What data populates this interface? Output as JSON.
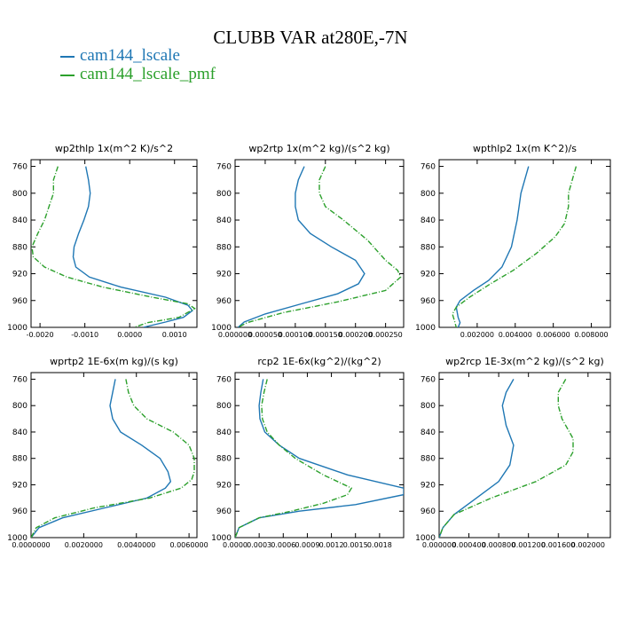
{
  "title": "CLUBB VAR at280E,-7N",
  "colors": {
    "cam144_lscale": "#1f77b4",
    "cam144_lscale_pmf": "#2ca02c",
    "axis": "#000000"
  },
  "legend": [
    {
      "name": "cam144_lscale",
      "color": "#1f77b4",
      "style": "solid"
    },
    {
      "name": "cam144_lscale_pmf",
      "color": "#2ca02c",
      "style": "dashdot"
    }
  ],
  "chart_data": [
    {
      "type": "line",
      "title": "wp2thlp  1x(m^2 K)/s^2",
      "xlim": [
        -0.0022,
        0.0015
      ],
      "ylim": [
        1000,
        750
      ],
      "xticks": [
        -0.002,
        -0.001,
        0.0,
        0.001
      ],
      "xtick_labels": [
        "-0.0020",
        "-0.0010",
        "0.0000",
        "0.0010"
      ],
      "yticks": [
        760,
        800,
        840,
        880,
        920,
        960,
        1000
      ],
      "series": [
        {
          "name": "cam144_lscale",
          "points": [
            [
              -0.00098,
              760
            ],
            [
              -0.00092,
              780
            ],
            [
              -0.00088,
              800
            ],
            [
              -0.00092,
              820
            ],
            [
              -0.00102,
              840
            ],
            [
              -0.00114,
              860
            ],
            [
              -0.00124,
              880
            ],
            [
              -0.00126,
              895
            ],
            [
              -0.0012,
              910
            ],
            [
              -0.0009,
              925
            ],
            [
              -0.0002,
              940
            ],
            [
              0.0008,
              955
            ],
            [
              0.0013,
              967
            ],
            [
              0.0014,
              975
            ],
            [
              0.0012,
              985
            ],
            [
              0.0008,
              992
            ],
            [
              0.0003,
              1000
            ]
          ]
        },
        {
          "name": "cam144_lscale_pmf",
          "points": [
            [
              -0.0016,
              760
            ],
            [
              -0.0017,
              780
            ],
            [
              -0.0017,
              800
            ],
            [
              -0.0018,
              820
            ],
            [
              -0.0019,
              840
            ],
            [
              -0.00205,
              860
            ],
            [
              -0.00218,
              880
            ],
            [
              -0.00215,
              895
            ],
            [
              -0.0019,
              910
            ],
            [
              -0.0014,
              925
            ],
            [
              -0.0006,
              940
            ],
            [
              0.0005,
              955
            ],
            [
              0.0013,
              965
            ],
            [
              0.00145,
              972
            ],
            [
              0.0011,
              985
            ],
            [
              0.0004,
              993
            ],
            [
              0.0001,
              1000
            ]
          ]
        }
      ]
    },
    {
      "type": "line",
      "title": "wp2rtp  1x(m^2 kg)/(s^2 kg)",
      "xlim": [
        0.0,
        0.00028
      ],
      "ylim": [
        1000,
        750
      ],
      "xticks": [
        0.0,
        5e-05,
        0.0001,
        0.00015,
        0.0002,
        0.00025
      ],
      "xtick_labels": [
        "0.000000",
        "0.000050",
        "0.000100",
        "0.000150",
        "0.000200",
        "0.000250"
      ],
      "yticks": [
        760,
        800,
        840,
        880,
        920,
        960,
        1000
      ],
      "series": [
        {
          "name": "cam144_lscale",
          "points": [
            [
              0.000115,
              760
            ],
            [
              0.000105,
              780
            ],
            [
              0.0001,
              800
            ],
            [
              0.0001,
              820
            ],
            [
              0.000105,
              840
            ],
            [
              0.000125,
              860
            ],
            [
              0.00016,
              880
            ],
            [
              0.0002,
              900
            ],
            [
              0.000215,
              920
            ],
            [
              0.000205,
              935
            ],
            [
              0.00017,
              950
            ],
            [
              0.00011,
              965
            ],
            [
              5e-05,
              980
            ],
            [
              1.5e-05,
              992
            ],
            [
              5e-06,
              1000
            ]
          ]
        },
        {
          "name": "cam144_lscale_pmf",
          "points": [
            [
              0.00015,
              760
            ],
            [
              0.00014,
              780
            ],
            [
              0.00014,
              800
            ],
            [
              0.00015,
              820
            ],
            [
              0.00018,
              840
            ],
            [
              0.00022,
              870
            ],
            [
              0.00025,
              900
            ],
            [
              0.00027,
              915
            ],
            [
              0.000275,
              925
            ],
            [
              0.00025,
              945
            ],
            [
              0.00017,
              962
            ],
            [
              8e-05,
              978
            ],
            [
              2e-05,
              993
            ],
            [
              5e-06,
              1000
            ]
          ]
        }
      ]
    },
    {
      "type": "line",
      "title": "wpthlp2  1x(m K^2)/s",
      "xlim": [
        0.0,
        0.009
      ],
      "ylim": [
        1000,
        750
      ],
      "xticks": [
        0.002,
        0.004,
        0.006,
        0.008
      ],
      "xtick_labels": [
        "0.002000",
        "0.004000",
        "0.006000",
        "0.008000"
      ],
      "yticks": [
        760,
        800,
        840,
        880,
        920,
        960,
        1000
      ],
      "series": [
        {
          "name": "cam144_lscale",
          "points": [
            [
              0.0047,
              760
            ],
            [
              0.0045,
              780
            ],
            [
              0.0043,
              800
            ],
            [
              0.0042,
              820
            ],
            [
              0.0041,
              840
            ],
            [
              0.0038,
              880
            ],
            [
              0.0033,
              910
            ],
            [
              0.0026,
              930
            ],
            [
              0.0018,
              945
            ],
            [
              0.0011,
              960
            ],
            [
              0.0009,
              970
            ],
            [
              0.001,
              985
            ],
            [
              0.0011,
              993
            ],
            [
              0.001,
              1000
            ]
          ]
        },
        {
          "name": "cam144_lscale_pmf",
          "points": [
            [
              0.0072,
              760
            ],
            [
              0.007,
              780
            ],
            [
              0.0068,
              800
            ],
            [
              0.0068,
              820
            ],
            [
              0.0066,
              845
            ],
            [
              0.0061,
              865
            ],
            [
              0.0051,
              890
            ],
            [
              0.0039,
              915
            ],
            [
              0.0027,
              935
            ],
            [
              0.0016,
              955
            ],
            [
              0.0009,
              970
            ],
            [
              0.0007,
              980
            ],
            [
              0.0008,
              990
            ],
            [
              0.0009,
              1000
            ]
          ]
        }
      ]
    },
    {
      "type": "line",
      "title": "wprtp2  1E-6x(m kg)/(s kg)",
      "xlim": [
        0.0,
        0.0063
      ],
      "ylim": [
        1000,
        750
      ],
      "xticks": [
        0.0,
        0.002,
        0.004,
        0.006
      ],
      "xtick_labels": [
        "0.0000000",
        "0.0020000",
        "0.0040000",
        "0.0060000"
      ],
      "yticks": [
        760,
        800,
        840,
        880,
        920,
        960,
        1000
      ],
      "series": [
        {
          "name": "cam144_lscale",
          "points": [
            [
              0.0032,
              760
            ],
            [
              0.0031,
              780
            ],
            [
              0.003,
              800
            ],
            [
              0.0031,
              820
            ],
            [
              0.0034,
              840
            ],
            [
              0.0042,
              860
            ],
            [
              0.0049,
              880
            ],
            [
              0.0052,
              900
            ],
            [
              0.0053,
              915
            ],
            [
              0.0051,
              925
            ],
            [
              0.0044,
              940
            ],
            [
              0.0028,
              955
            ],
            [
              0.0012,
              970
            ],
            [
              0.0003,
              985
            ],
            [
              0.0,
              1000
            ]
          ]
        },
        {
          "name": "cam144_lscale_pmf",
          "points": [
            [
              0.0036,
              760
            ],
            [
              0.0037,
              780
            ],
            [
              0.0039,
              800
            ],
            [
              0.0044,
              820
            ],
            [
              0.0054,
              840
            ],
            [
              0.006,
              860
            ],
            [
              0.0062,
              880
            ],
            [
              0.0062,
              900
            ],
            [
              0.0061,
              912
            ],
            [
              0.0057,
              925
            ],
            [
              0.0045,
              940
            ],
            [
              0.0024,
              955
            ],
            [
              0.0009,
              970
            ],
            [
              0.0002,
              985
            ],
            [
              0.0,
              1000
            ]
          ]
        }
      ]
    },
    {
      "type": "line",
      "title": "rcp2  1E-6x(kg^2)/(kg^2)",
      "xlim": [
        0.0,
        0.0021
      ],
      "ylim": [
        1000,
        750
      ],
      "xticks": [
        0.0,
        0.0003,
        0.0006,
        0.0009,
        0.0012,
        0.0015,
        0.0018
      ],
      "xtick_labels": [
        "0.0000",
        "0.0003",
        "0.0006",
        "0.0009",
        "0.0012",
        "0.0015",
        "0.0018"
      ],
      "yticks": [
        760,
        800,
        840,
        880,
        920,
        960,
        1000
      ],
      "series": [
        {
          "name": "cam144_lscale",
          "points": [
            [
              0.00035,
              760
            ],
            [
              0.00032,
              780
            ],
            [
              0.0003,
              800
            ],
            [
              0.00031,
              820
            ],
            [
              0.00037,
              840
            ],
            [
              0.00055,
              860
            ],
            [
              0.0008,
              880
            ],
            [
              0.0014,
              905
            ],
            [
              0.0021,
              925
            ],
            [
              0.0021,
              935
            ],
            [
              0.0015,
              950
            ],
            [
              0.0008,
              960
            ],
            [
              0.0003,
              970
            ],
            [
              5e-05,
              985
            ],
            [
              0.0,
              1000
            ]
          ]
        },
        {
          "name": "cam144_lscale_pmf",
          "points": [
            [
              0.0004,
              760
            ],
            [
              0.00036,
              780
            ],
            [
              0.00033,
              800
            ],
            [
              0.00034,
              820
            ],
            [
              0.0004,
              840
            ],
            [
              0.00055,
              860
            ],
            [
              0.00075,
              880
            ],
            [
              0.0011,
              905
            ],
            [
              0.00145,
              925
            ],
            [
              0.0014,
              935
            ],
            [
              0.0011,
              948
            ],
            [
              0.0007,
              960
            ],
            [
              0.0003,
              970
            ],
            [
              5e-05,
              985
            ],
            [
              0.0,
              1000
            ]
          ]
        }
      ]
    },
    {
      "type": "line",
      "title": "wp2rcp  1E-3x(m^2 kg)/(s^2 kg)",
      "xlim": [
        0.0,
        0.0023
      ],
      "ylim": [
        1000,
        750
      ],
      "xticks": [
        0.0,
        0.0004,
        0.0008,
        0.0012,
        0.0016,
        0.002
      ],
      "xtick_labels": [
        "0.000000",
        "0.000400",
        "0.000800",
        "0.001200",
        "0.001600",
        "0.002000"
      ],
      "yticks": [
        760,
        800,
        840,
        880,
        920,
        960,
        1000
      ],
      "series": [
        {
          "name": "cam144_lscale",
          "points": [
            [
              0.001,
              760
            ],
            [
              0.0009,
              780
            ],
            [
              0.00085,
              800
            ],
            [
              0.0009,
              830
            ],
            [
              0.001,
              860
            ],
            [
              0.00095,
              890
            ],
            [
              0.0008,
              915
            ],
            [
              0.0005,
              940
            ],
            [
              0.0002,
              965
            ],
            [
              5e-05,
              985
            ],
            [
              0.0,
              1000
            ]
          ]
        },
        {
          "name": "cam144_lscale_pmf",
          "points": [
            [
              0.0017,
              760
            ],
            [
              0.0016,
              780
            ],
            [
              0.0016,
              800
            ],
            [
              0.00165,
              820
            ],
            [
              0.0018,
              850
            ],
            [
              0.0018,
              870
            ],
            [
              0.0017,
              890
            ],
            [
              0.0013,
              915
            ],
            [
              0.0007,
              940
            ],
            [
              0.0002,
              965
            ],
            [
              5e-05,
              985
            ],
            [
              0.0,
              1000
            ]
          ]
        }
      ]
    }
  ]
}
